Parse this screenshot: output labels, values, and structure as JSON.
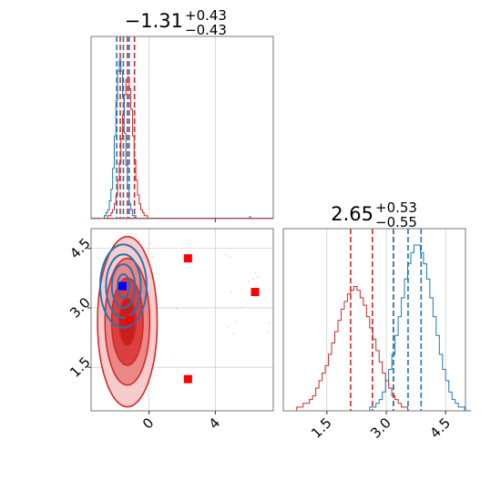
{
  "chart_data": {
    "type": "corner",
    "colors": {
      "series_a": "#d62728",
      "series_b": "#1f77b4",
      "points": "#ff0000",
      "highlight_point": "#0000ff"
    },
    "params": [
      {
        "title_main": "−1.31",
        "title_sup": "+0.43",
        "title_sub": "−0.43",
        "range": [
          -3.5,
          7.5
        ],
        "ticks": [
          0,
          4
        ],
        "tick_labels": [
          "0",
          "4"
        ]
      },
      {
        "title_main": "2.65",
        "title_sup": "+0.53",
        "title_sub": "−0.55",
        "range": [
          0.4,
          5.0
        ],
        "ticks": [
          1.5,
          3.0,
          4.5
        ],
        "tick_labels": [
          "1.5",
          "3.0",
          "4.5"
        ]
      }
    ],
    "grid": true,
    "hist_1d": {
      "param_0": {
        "series_a_lines": [
          -1.74,
          -1.31,
          -0.88
        ],
        "series_b_lines": [
          -1.95,
          -1.55,
          -1.2
        ],
        "series_a_bins": {
          "start": -2.8,
          "width": 0.1,
          "counts": [
            0,
            0,
            0,
            1,
            1,
            2,
            3,
            5,
            8,
            13,
            19,
            27,
            35,
            42,
            47,
            48,
            44,
            37,
            28,
            20,
            13,
            8,
            5,
            3,
            2,
            1,
            1,
            0,
            0,
            0
          ]
        },
        "series_b_bins": {
          "start": -2.8,
          "width": 0.1,
          "counts": [
            0,
            1,
            2,
            3,
            6,
            10,
            17,
            28,
            40,
            50,
            54,
            50,
            41,
            29,
            18,
            10,
            5,
            3,
            1,
            1,
            0,
            0,
            0,
            0,
            0,
            0,
            0,
            0,
            0,
            0
          ]
        },
        "series_a_outlier_x": 6.1
      },
      "param_1": {
        "series_a_lines": [
          2.1,
          2.65,
          3.18
        ],
        "series_b_lines": [
          3.18,
          3.55,
          3.88
        ],
        "series_a_bins": {
          "start": 0.5,
          "width": 0.08,
          "counts": [
            0,
            0,
            0,
            1,
            1,
            2,
            2,
            3,
            4,
            6,
            8,
            10,
            12,
            15,
            18,
            21,
            24,
            27,
            29,
            31,
            32,
            33,
            32,
            30,
            28,
            25,
            22,
            19,
            16,
            13,
            10,
            8,
            6,
            4,
            3,
            2,
            1,
            1,
            0,
            0,
            0,
            0,
            0,
            0,
            0,
            0,
            0,
            0,
            0,
            0,
            0,
            0,
            0,
            0,
            0,
            0,
            0,
            0
          ]
        },
        "series_b_bins": {
          "start": 0.5,
          "width": 0.08,
          "counts": [
            0,
            0,
            0,
            0,
            0,
            0,
            0,
            0,
            0,
            0,
            0,
            0,
            0,
            0,
            0,
            0,
            0,
            0,
            0,
            0,
            0,
            0,
            0,
            0,
            0,
            0,
            1,
            1,
            2,
            3,
            5,
            8,
            11,
            15,
            20,
            25,
            30,
            35,
            39,
            42,
            44,
            44,
            42,
            39,
            35,
            30,
            25,
            20,
            15,
            11,
            8,
            5,
            3,
            2,
            1,
            1,
            0,
            0
          ]
        }
      }
    },
    "points_2d": [
      {
        "x": 2.35,
        "y": 4.25,
        "color": "points"
      },
      {
        "x": 6.4,
        "y": 3.4,
        "color": "points"
      },
      {
        "x": 2.35,
        "y": 1.2,
        "color": "points"
      },
      {
        "x": -1.2,
        "y": 2.7,
        "color": "points"
      },
      {
        "x": -1.6,
        "y": 3.55,
        "color": "highlight_point"
      }
    ],
    "contours_2d": {
      "series_a": {
        "cx": -1.31,
        "cy": 2.65,
        "rx": [
          0.5,
          0.95,
          1.35,
          1.8
        ],
        "ry": [
          0.6,
          1.1,
          1.6,
          2.15
        ]
      },
      "series_b": {
        "cx": -1.55,
        "cy": 3.55,
        "rx": [
          0.35,
          0.7,
          1.05,
          1.4
        ],
        "ry": [
          0.3,
          0.55,
          0.8,
          1.05
        ]
      }
    }
  }
}
